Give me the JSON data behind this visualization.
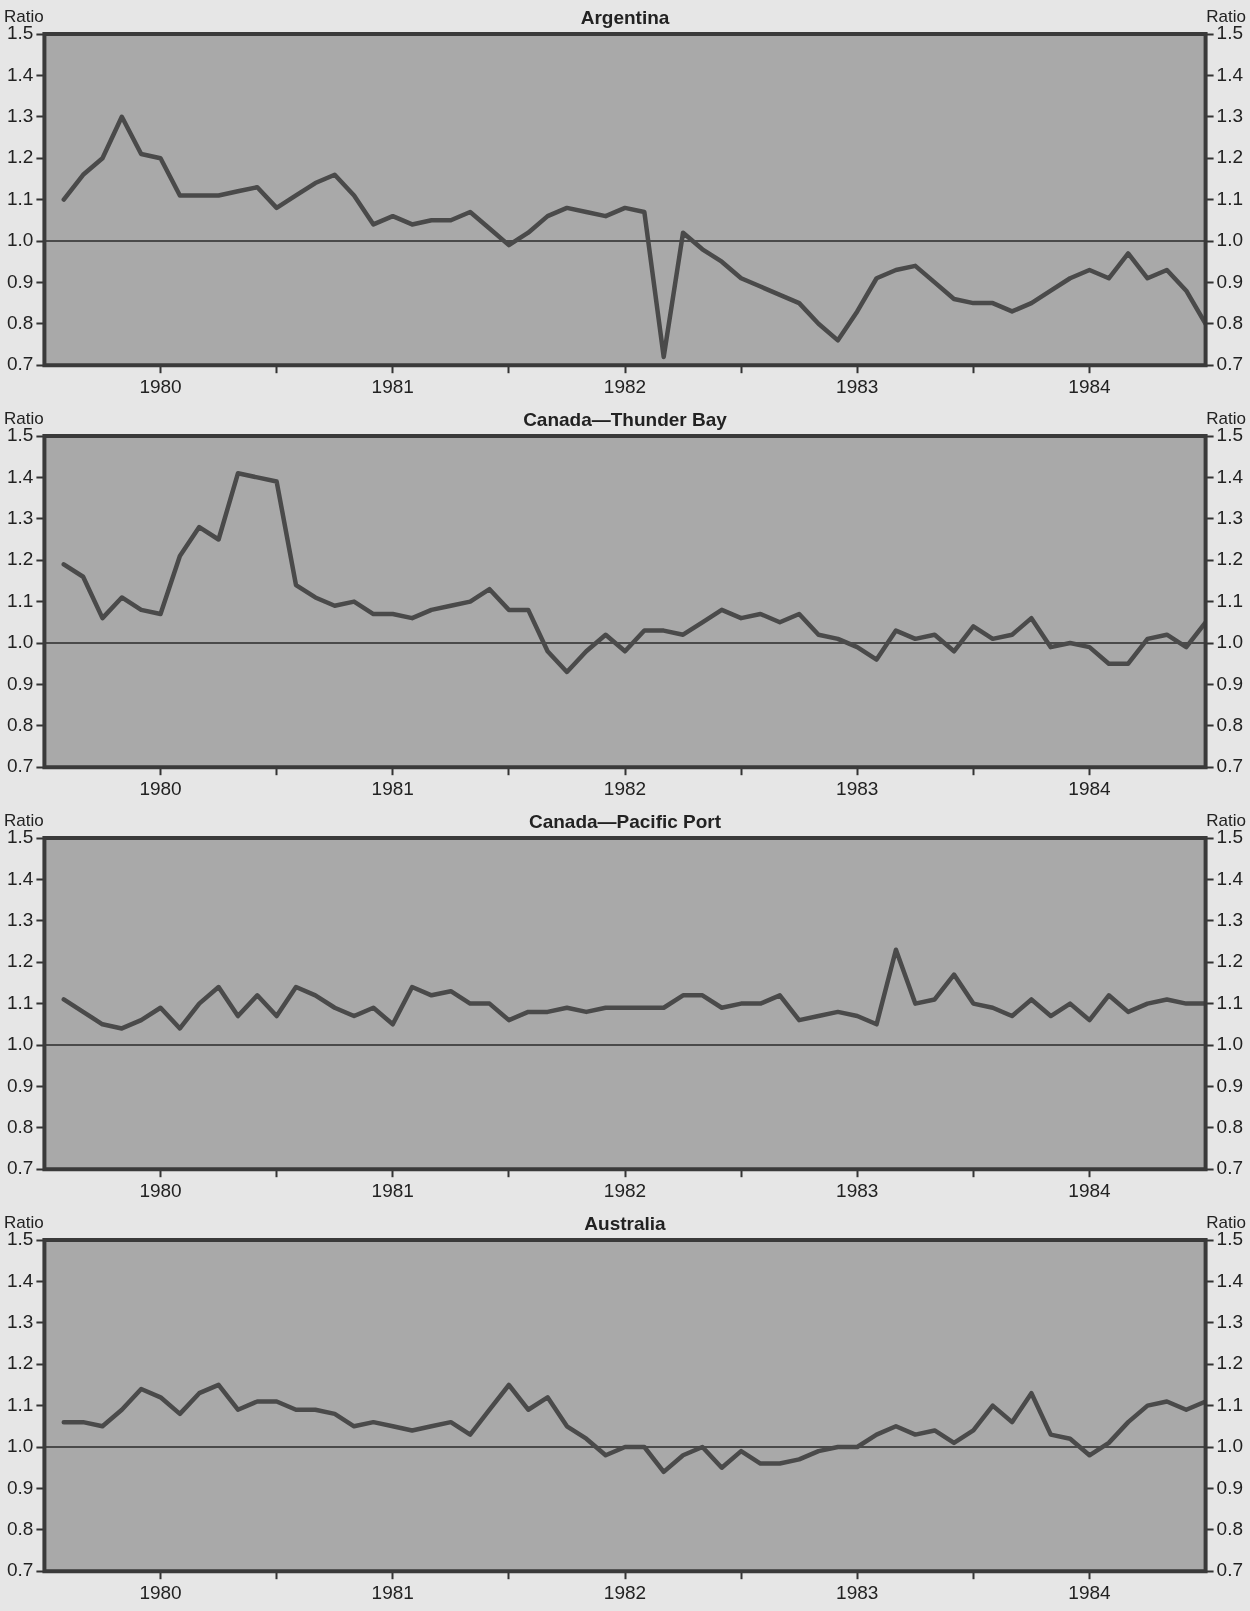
{
  "chart_data": [
    {
      "type": "line",
      "title": "Argentina",
      "ylabel": "Ratio",
      "y2label": "Ratio",
      "x": [
        "1980-01",
        "1980-02",
        "1980-03",
        "1980-04",
        "1980-05",
        "1980-06",
        "1980-07",
        "1980-08",
        "1980-09",
        "1980-10",
        "1980-11",
        "1980-12",
        "1981-01",
        "1981-02",
        "1981-03",
        "1981-04",
        "1981-05",
        "1981-06",
        "1981-07",
        "1981-08",
        "1981-09",
        "1981-10",
        "1981-11",
        "1981-12",
        "1982-01",
        "1982-02",
        "1982-03",
        "1982-04",
        "1982-05",
        "1982-06",
        "1982-07",
        "1982-08",
        "1982-09",
        "1982-10",
        "1982-11",
        "1982-12",
        "1983-01",
        "1983-02",
        "1983-03",
        "1983-04",
        "1983-05",
        "1983-06",
        "1983-07",
        "1983-08",
        "1983-09",
        "1983-10",
        "1983-11",
        "1983-12",
        "1984-01",
        "1984-02",
        "1984-03",
        "1984-04",
        "1984-05",
        "1984-06",
        "1984-07",
        "1984-08",
        "1984-09",
        "1984-10",
        "1984-11",
        "1984-12"
      ],
      "series": [
        {
          "color": "#4a4a4a",
          "values": [
            1.1,
            1.16,
            1.2,
            1.3,
            1.21,
            1.2,
            1.11,
            1.11,
            1.11,
            1.12,
            1.13,
            1.08,
            1.11,
            1.14,
            1.16,
            1.11,
            1.04,
            1.06,
            1.04,
            1.05,
            1.05,
            1.07,
            1.03,
            0.99,
            1.02,
            1.06,
            1.08,
            1.07,
            1.06,
            1.08,
            1.07,
            0.72,
            1.02,
            0.98,
            0.95,
            0.91,
            0.89,
            0.87,
            0.85,
            0.8,
            0.76,
            0.83,
            0.91,
            0.93,
            0.94,
            0.9,
            0.86,
            0.85,
            0.85,
            0.83,
            0.85,
            0.88,
            0.91,
            0.93,
            0.91,
            0.97,
            0.91,
            0.93,
            0.88,
            0.8
          ]
        }
      ],
      "xlim": [
        "1979-12",
        "1984-12"
      ],
      "xticks": [
        {
          "value": "1980-06",
          "label": "1980"
        },
        {
          "value": "1980-12",
          "label": null
        },
        {
          "value": "1981-06",
          "label": "1981"
        },
        {
          "value": "1981-12",
          "label": null
        },
        {
          "value": "1982-06",
          "label": "1982"
        },
        {
          "value": "1982-12",
          "label": null
        },
        {
          "value": "1983-06",
          "label": "1983"
        },
        {
          "value": "1983-12",
          "label": null
        },
        {
          "value": "1984-06",
          "label": "1984"
        }
      ],
      "ylim": [
        0.7,
        1.5
      ],
      "yticks": [
        {
          "value": 0.7,
          "label": "0.7"
        },
        {
          "value": 0.8,
          "label": "0.8"
        },
        {
          "value": 0.9,
          "label": "0.9"
        },
        {
          "value": 1.0,
          "label": "1.0"
        },
        {
          "value": 1.1,
          "label": "1.1"
        },
        {
          "value": 1.2,
          "label": "1.2"
        },
        {
          "value": 1.3,
          "label": "1.3"
        },
        {
          "value": 1.4,
          "label": "1.4"
        },
        {
          "value": 1.5,
          "label": "1.5"
        }
      ],
      "y2lim": [
        0.7,
        1.5
      ],
      "y2ticks": [
        {
          "value": 0.7,
          "label": "0.7"
        },
        {
          "value": 0.8,
          "label": "0.8"
        },
        {
          "value": 0.9,
          "label": "0.9"
        },
        {
          "value": 1.0,
          "label": "1.0"
        },
        {
          "value": 1.1,
          "label": "1.1"
        },
        {
          "value": 1.2,
          "label": "1.2"
        },
        {
          "value": 1.3,
          "label": "1.3"
        },
        {
          "value": 1.4,
          "label": "1.4"
        },
        {
          "value": 1.5,
          "label": "1.5"
        }
      ],
      "ref_lines": [
        {
          "axis": "y",
          "value": 1.0,
          "color": "#4a4a4a"
        }
      ]
    },
    {
      "type": "line",
      "title": "Canada—Thunder Bay",
      "ylabel": "Ratio",
      "y2label": "Ratio",
      "x": [
        "1980-01",
        "1980-02",
        "1980-03",
        "1980-04",
        "1980-05",
        "1980-06",
        "1980-07",
        "1980-08",
        "1980-09",
        "1980-10",
        "1980-11",
        "1980-12",
        "1981-01",
        "1981-02",
        "1981-03",
        "1981-04",
        "1981-05",
        "1981-06",
        "1981-07",
        "1981-08",
        "1981-09",
        "1981-10",
        "1981-11",
        "1981-12",
        "1982-01",
        "1982-02",
        "1982-03",
        "1982-04",
        "1982-05",
        "1982-06",
        "1982-07",
        "1982-08",
        "1982-09",
        "1982-10",
        "1982-11",
        "1982-12",
        "1983-01",
        "1983-02",
        "1983-03",
        "1983-04",
        "1983-05",
        "1983-06",
        "1983-07",
        "1983-08",
        "1983-09",
        "1983-10",
        "1983-11",
        "1983-12",
        "1984-01",
        "1984-02",
        "1984-03",
        "1984-04",
        "1984-05",
        "1984-06",
        "1984-07",
        "1984-08",
        "1984-09",
        "1984-10",
        "1984-11",
        "1984-12"
      ],
      "series": [
        {
          "color": "#4a4a4a",
          "values": [
            1.19,
            1.16,
            1.06,
            1.11,
            1.08,
            1.07,
            1.21,
            1.28,
            1.25,
            1.41,
            1.4,
            1.39,
            1.14,
            1.11,
            1.09,
            1.1,
            1.07,
            1.07,
            1.06,
            1.08,
            1.09,
            1.1,
            1.13,
            1.08,
            1.08,
            0.98,
            0.93,
            0.98,
            1.02,
            0.98,
            1.03,
            1.03,
            1.02,
            1.05,
            1.08,
            1.06,
            1.07,
            1.05,
            1.07,
            1.02,
            1.01,
            0.99,
            0.96,
            1.03,
            1.01,
            1.02,
            0.98,
            1.04,
            1.01,
            1.02,
            1.06,
            0.99,
            1.0,
            0.99,
            0.95,
            0.95,
            1.01,
            1.02,
            0.99,
            1.05
          ]
        }
      ],
      "xlim": [
        "1979-12",
        "1984-12"
      ],
      "xticks": [
        {
          "value": "1980-06",
          "label": "1980"
        },
        {
          "value": "1980-12",
          "label": null
        },
        {
          "value": "1981-06",
          "label": "1981"
        },
        {
          "value": "1981-12",
          "label": null
        },
        {
          "value": "1982-06",
          "label": "1982"
        },
        {
          "value": "1982-12",
          "label": null
        },
        {
          "value": "1983-06",
          "label": "1983"
        },
        {
          "value": "1983-12",
          "label": null
        },
        {
          "value": "1984-06",
          "label": "1984"
        }
      ],
      "ylim": [
        0.7,
        1.5
      ],
      "yticks": [
        {
          "value": 0.7,
          "label": "0.7"
        },
        {
          "value": 0.8,
          "label": "0.8"
        },
        {
          "value": 0.9,
          "label": "0.9"
        },
        {
          "value": 1.0,
          "label": "1.0"
        },
        {
          "value": 1.1,
          "label": "1.1"
        },
        {
          "value": 1.2,
          "label": "1.2"
        },
        {
          "value": 1.3,
          "label": "1.3"
        },
        {
          "value": 1.4,
          "label": "1.4"
        },
        {
          "value": 1.5,
          "label": "1.5"
        }
      ],
      "y2lim": [
        0.7,
        1.5
      ],
      "y2ticks": [
        {
          "value": 0.7,
          "label": "0.7"
        },
        {
          "value": 0.8,
          "label": "0.8"
        },
        {
          "value": 0.9,
          "label": "0.9"
        },
        {
          "value": 1.0,
          "label": "1.0"
        },
        {
          "value": 1.1,
          "label": "1.1"
        },
        {
          "value": 1.2,
          "label": "1.2"
        },
        {
          "value": 1.3,
          "label": "1.3"
        },
        {
          "value": 1.4,
          "label": "1.4"
        },
        {
          "value": 1.5,
          "label": "1.5"
        }
      ],
      "ref_lines": [
        {
          "axis": "y",
          "value": 1.0,
          "color": "#4a4a4a"
        }
      ]
    },
    {
      "type": "line",
      "title": "Canada—Pacific Port",
      "ylabel": "Ratio",
      "y2label": "Ratio",
      "x": [
        "1980-01",
        "1980-02",
        "1980-03",
        "1980-04",
        "1980-05",
        "1980-06",
        "1980-07",
        "1980-08",
        "1980-09",
        "1980-10",
        "1980-11",
        "1980-12",
        "1981-01",
        "1981-02",
        "1981-03",
        "1981-04",
        "1981-05",
        "1981-06",
        "1981-07",
        "1981-08",
        "1981-09",
        "1981-10",
        "1981-11",
        "1981-12",
        "1982-01",
        "1982-02",
        "1982-03",
        "1982-04",
        "1982-05",
        "1982-06",
        "1982-07",
        "1982-08",
        "1982-09",
        "1982-10",
        "1982-11",
        "1982-12",
        "1983-01",
        "1983-02",
        "1983-03",
        "1983-04",
        "1983-05",
        "1983-06",
        "1983-07",
        "1983-08",
        "1983-09",
        "1983-10",
        "1983-11",
        "1983-12",
        "1984-01",
        "1984-02",
        "1984-03",
        "1984-04",
        "1984-05",
        "1984-06",
        "1984-07",
        "1984-08",
        "1984-09",
        "1984-10",
        "1984-11",
        "1984-12"
      ],
      "series": [
        {
          "color": "#4a4a4a",
          "values": [
            1.11,
            1.08,
            1.05,
            1.04,
            1.06,
            1.09,
            1.04,
            1.1,
            1.14,
            1.07,
            1.12,
            1.07,
            1.14,
            1.12,
            1.09,
            1.07,
            1.09,
            1.05,
            1.14,
            1.12,
            1.13,
            1.1,
            1.1,
            1.06,
            1.08,
            1.08,
            1.09,
            1.08,
            1.09,
            1.09,
            1.09,
            1.09,
            1.12,
            1.12,
            1.09,
            1.1,
            1.1,
            1.12,
            1.06,
            1.07,
            1.08,
            1.07,
            1.05,
            1.23,
            1.1,
            1.11,
            1.17,
            1.1,
            1.09,
            1.07,
            1.11,
            1.07,
            1.1,
            1.06,
            1.12,
            1.08,
            1.1,
            1.11,
            1.1,
            1.1
          ]
        }
      ],
      "xlim": [
        "1979-12",
        "1984-12"
      ],
      "xticks": [
        {
          "value": "1980-06",
          "label": "1980"
        },
        {
          "value": "1980-12",
          "label": null
        },
        {
          "value": "1981-06",
          "label": "1981"
        },
        {
          "value": "1981-12",
          "label": null
        },
        {
          "value": "1982-06",
          "label": "1982"
        },
        {
          "value": "1982-12",
          "label": null
        },
        {
          "value": "1983-06",
          "label": "1983"
        },
        {
          "value": "1983-12",
          "label": null
        },
        {
          "value": "1984-06",
          "label": "1984"
        }
      ],
      "ylim": [
        0.7,
        1.5
      ],
      "yticks": [
        {
          "value": 0.7,
          "label": "0.7"
        },
        {
          "value": 0.8,
          "label": "0.8"
        },
        {
          "value": 0.9,
          "label": "0.9"
        },
        {
          "value": 1.0,
          "label": "1.0"
        },
        {
          "value": 1.1,
          "label": "1.1"
        },
        {
          "value": 1.2,
          "label": "1.2"
        },
        {
          "value": 1.3,
          "label": "1.3"
        },
        {
          "value": 1.4,
          "label": "1.4"
        },
        {
          "value": 1.5,
          "label": "1.5"
        }
      ],
      "y2lim": [
        0.7,
        1.5
      ],
      "y2ticks": [
        {
          "value": 0.7,
          "label": "0.7"
        },
        {
          "value": 0.8,
          "label": "0.8"
        },
        {
          "value": 0.9,
          "label": "0.9"
        },
        {
          "value": 1.0,
          "label": "1.0"
        },
        {
          "value": 1.1,
          "label": "1.1"
        },
        {
          "value": 1.2,
          "label": "1.2"
        },
        {
          "value": 1.3,
          "label": "1.3"
        },
        {
          "value": 1.4,
          "label": "1.4"
        },
        {
          "value": 1.5,
          "label": "1.5"
        }
      ],
      "ref_lines": [
        {
          "axis": "y",
          "value": 1.0,
          "color": "#4a4a4a"
        }
      ]
    },
    {
      "type": "line",
      "title": "Australia",
      "ylabel": "Ratio",
      "y2label": "Ratio",
      "x": [
        "1980-01",
        "1980-02",
        "1980-03",
        "1980-04",
        "1980-05",
        "1980-06",
        "1980-07",
        "1980-08",
        "1980-09",
        "1980-10",
        "1980-11",
        "1980-12",
        "1981-01",
        "1981-02",
        "1981-03",
        "1981-04",
        "1981-05",
        "1981-06",
        "1981-07",
        "1981-08",
        "1981-09",
        "1981-10",
        "1981-11",
        "1981-12",
        "1982-01",
        "1982-02",
        "1982-03",
        "1982-04",
        "1982-05",
        "1982-06",
        "1982-07",
        "1982-08",
        "1982-09",
        "1982-10",
        "1982-11",
        "1982-12",
        "1983-01",
        "1983-02",
        "1983-03",
        "1983-04",
        "1983-05",
        "1983-06",
        "1983-07",
        "1983-08",
        "1983-09",
        "1983-10",
        "1983-11",
        "1983-12",
        "1984-01",
        "1984-02",
        "1984-03",
        "1984-04",
        "1984-05",
        "1984-06",
        "1984-07",
        "1984-08",
        "1984-09",
        "1984-10",
        "1984-11",
        "1984-12"
      ],
      "series": [
        {
          "color": "#4a4a4a",
          "values": [
            1.06,
            1.06,
            1.05,
            1.09,
            1.14,
            1.12,
            1.08,
            1.13,
            1.15,
            1.09,
            1.11,
            1.11,
            1.09,
            1.09,
            1.08,
            1.05,
            1.06,
            1.05,
            1.04,
            1.05,
            1.06,
            1.03,
            1.09,
            1.15,
            1.09,
            1.12,
            1.05,
            1.02,
            0.98,
            1.0,
            1.0,
            0.94,
            0.98,
            1.0,
            0.95,
            0.99,
            0.96,
            0.96,
            0.97,
            0.99,
            1.0,
            1.0,
            1.03,
            1.05,
            1.03,
            1.04,
            1.01,
            1.04,
            1.1,
            1.06,
            1.13,
            1.03,
            1.02,
            0.98,
            1.01,
            1.06,
            1.1,
            1.11,
            1.09,
            1.11
          ]
        }
      ],
      "xlim": [
        "1979-12",
        "1984-12"
      ],
      "xticks": [
        {
          "value": "1980-06",
          "label": "1980"
        },
        {
          "value": "1980-12",
          "label": null
        },
        {
          "value": "1981-06",
          "label": "1981"
        },
        {
          "value": "1981-12",
          "label": null
        },
        {
          "value": "1982-06",
          "label": "1982"
        },
        {
          "value": "1982-12",
          "label": null
        },
        {
          "value": "1983-06",
          "label": "1983"
        },
        {
          "value": "1983-12",
          "label": null
        },
        {
          "value": "1984-06",
          "label": "1984"
        }
      ],
      "ylim": [
        0.7,
        1.5
      ],
      "yticks": [
        {
          "value": 0.7,
          "label": "0.7"
        },
        {
          "value": 0.8,
          "label": "0.8"
        },
        {
          "value": 0.9,
          "label": "0.9"
        },
        {
          "value": 1.0,
          "label": "1.0"
        },
        {
          "value": 1.1,
          "label": "1.1"
        },
        {
          "value": 1.2,
          "label": "1.2"
        },
        {
          "value": 1.3,
          "label": "1.3"
        },
        {
          "value": 1.4,
          "label": "1.4"
        },
        {
          "value": 1.5,
          "label": "1.5"
        }
      ],
      "y2lim": [
        0.7,
        1.5
      ],
      "y2ticks": [
        {
          "value": 0.7,
          "label": "0.7"
        },
        {
          "value": 0.8,
          "label": "0.8"
        },
        {
          "value": 0.9,
          "label": "0.9"
        },
        {
          "value": 1.0,
          "label": "1.0"
        },
        {
          "value": 1.1,
          "label": "1.1"
        },
        {
          "value": 1.2,
          "label": "1.2"
        },
        {
          "value": 1.3,
          "label": "1.3"
        },
        {
          "value": 1.4,
          "label": "1.4"
        },
        {
          "value": 1.5,
          "label": "1.5"
        }
      ],
      "ref_lines": [
        {
          "axis": "y",
          "value": 1.0,
          "color": "#4a4a4a"
        }
      ]
    }
  ]
}
